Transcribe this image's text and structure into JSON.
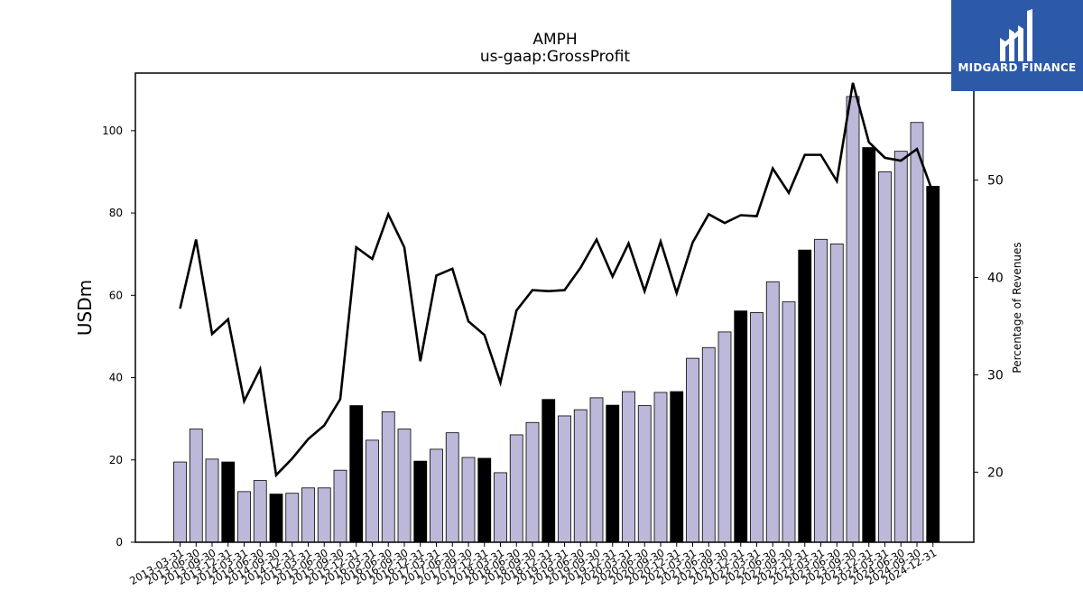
{
  "header": {
    "title_line1": "AMPH",
    "title_line2": "us-gaap:GrossProfit"
  },
  "logo": {
    "text": "MIDGARD FINANCE",
    "icon": "midgard-logo-icon",
    "background_color": "#2c5aa8"
  },
  "colors": {
    "bar_default": "#bcb8d9",
    "bar_highlight": "#000000",
    "line": "#000000"
  },
  "chart_data": {
    "type": "bar",
    "title": "AMPH\nus-gaap:GrossProfit",
    "ylabel": "USDm",
    "y2label": "Percentage of Revenues",
    "ylim": [
      0,
      114
    ],
    "y2lim": [
      12.8,
      61
    ],
    "yticks": [
      0,
      20,
      40,
      60,
      80,
      100
    ],
    "y2ticks": [
      20,
      30,
      40,
      50
    ],
    "categories": [
      "2013-03-31",
      "2013-06-30",
      "2013-09-30",
      "2013-12-31",
      "2014-03-31",
      "2014-06-30",
      "2014-09-30",
      "2014-12-31",
      "2015-03-31",
      "2015-06-30",
      "2015-09-30",
      "2015-12-31",
      "2016-03-31",
      "2016-06-30",
      "2016-09-30",
      "2016-12-31",
      "2017-03-31",
      "2017-06-30",
      "2017-09-30",
      "2017-12-31",
      "2018-03-31",
      "2018-06-30",
      "2018-09-30",
      "2018-12-31",
      "2019-03-31",
      "2019-06-30",
      "2019-09-30",
      "2019-12-31",
      "2020-03-31",
      "2020-06-30",
      "2020-09-30",
      "2020-12-31",
      "2021-03-31",
      "2021-06-30",
      "2021-09-30",
      "2021-12-31",
      "2022-03-31",
      "2022-06-30",
      "2022-09-30",
      "2022-12-31",
      "2023-03-31",
      "2023-06-30",
      "2023-09-30",
      "2023-12-31",
      "2024-03-31",
      "2024-06-30",
      "2024-09-30",
      "2024-12-31"
    ],
    "series": [
      {
        "type": "bar",
        "axis": "left",
        "values": [
          19.5,
          27.5,
          20.2,
          19.5,
          12.3,
          15.0,
          11.7,
          11.9,
          13.2,
          13.2,
          17.5,
          33.2,
          24.8,
          31.7,
          27.5,
          19.7,
          22.6,
          26.6,
          20.6,
          20.4,
          16.9,
          26.1,
          29.1,
          34.7,
          30.7,
          32.2,
          35.1,
          33.3,
          36.6,
          33.2,
          36.4,
          36.6,
          44.7,
          47.3,
          51.1,
          56.2,
          55.8,
          63.3,
          58.4,
          71.0,
          73.6,
          72.5,
          108.3,
          95.9,
          90.0,
          95.0,
          102.0,
          86.5
        ],
        "highlight": [
          false,
          false,
          false,
          true,
          false,
          false,
          true,
          false,
          false,
          false,
          false,
          true,
          false,
          false,
          false,
          true,
          false,
          false,
          false,
          true,
          false,
          false,
          false,
          true,
          false,
          false,
          false,
          true,
          false,
          false,
          false,
          true,
          false,
          false,
          false,
          true,
          false,
          false,
          false,
          true,
          false,
          false,
          false,
          true,
          false,
          false,
          false,
          true
        ]
      },
      {
        "type": "line",
        "axis": "right",
        "values": [
          36.8,
          43.9,
          34.2,
          35.7,
          27.3,
          30.6,
          19.7,
          21.4,
          23.4,
          24.8,
          27.5,
          43.1,
          41.9,
          46.5,
          43.1,
          31.4,
          40.2,
          40.9,
          35.5,
          34.1,
          29.2,
          36.6,
          38.7,
          38.6,
          38.7,
          41.0,
          43.9,
          40.1,
          43.5,
          38.6,
          43.7,
          38.4,
          43.6,
          46.5,
          45.6,
          46.4,
          46.3,
          51.2,
          48.7,
          52.6,
          52.6,
          49.9,
          60.0,
          53.9,
          52.3,
          52.0,
          53.2,
          48.7
        ]
      }
    ]
  }
}
